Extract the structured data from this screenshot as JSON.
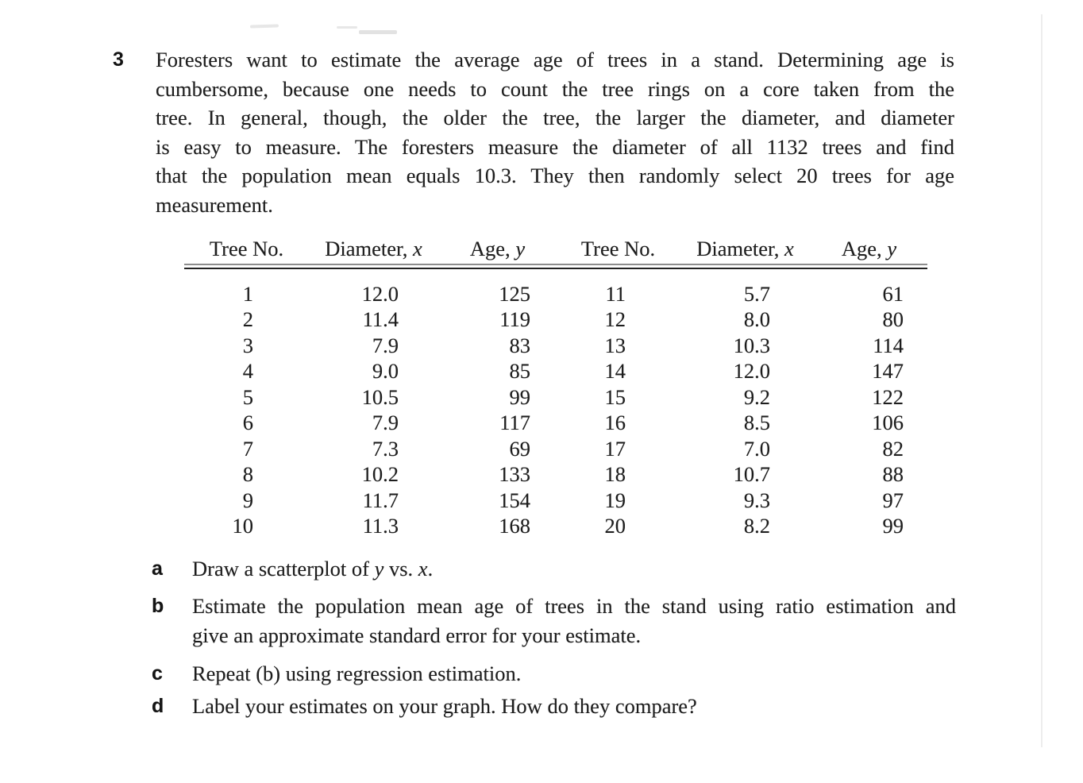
{
  "colors": {
    "paper": "#ffffff",
    "ink": "#1d1d1d"
  },
  "problem": {
    "number": "3",
    "lines": [
      "Foresters want to estimate the average age of trees in a stand. Determining age is",
      "cumbersome, because one needs to count the tree rings on a core taken from the",
      "tree. In general, though, the older the tree, the larger the diameter, and diameter",
      "is easy to measure. The foresters measure the diameter of all 1132 trees and find",
      "that the population mean equals 10.3. They then randomly select 20 trees for age",
      "measurement."
    ]
  },
  "table": {
    "headers": [
      {
        "prefix": "Tree No.",
        "var": ""
      },
      {
        "prefix": "Diameter, ",
        "var": "x"
      },
      {
        "prefix": "Age, ",
        "var": "y"
      },
      {
        "prefix": "Tree No.",
        "var": ""
      },
      {
        "prefix": "Diameter, ",
        "var": "x"
      },
      {
        "prefix": "Age, ",
        "var": "y"
      }
    ],
    "rows": [
      [
        "1",
        "12.0",
        "125",
        "11",
        "5.7",
        "61"
      ],
      [
        "2",
        "11.4",
        "119",
        "12",
        "8.0",
        "80"
      ],
      [
        "3",
        "7.9",
        "83",
        "13",
        "10.3",
        "114"
      ],
      [
        "4",
        "9.0",
        "85",
        "14",
        "12.0",
        "147"
      ],
      [
        "5",
        "10.5",
        "99",
        "15",
        "9.2",
        "122"
      ],
      [
        "6",
        "7.9",
        "117",
        "16",
        "8.5",
        "106"
      ],
      [
        "7",
        "7.3",
        "69",
        "17",
        "7.0",
        "82"
      ],
      [
        "8",
        "10.2",
        "133",
        "18",
        "10.7",
        "88"
      ],
      [
        "9",
        "11.7",
        "154",
        "19",
        "9.3",
        "97"
      ],
      [
        "10",
        "11.3",
        "168",
        "20",
        "8.2",
        "99"
      ]
    ]
  },
  "parts": [
    {
      "label": "a",
      "pre": "Draw a scatterplot of ",
      "y": "y",
      "mid": " vs. ",
      "x": "x",
      "post": "."
    },
    {
      "label": "b",
      "line1": "Estimate the population mean age of trees in the stand using ratio estimation and",
      "line2": "give an approximate standard error for your estimate."
    },
    {
      "label": "c",
      "text": "Repeat (b) using regression estimation."
    },
    {
      "label": "d",
      "text": "Label your estimates on your graph. How do they compare?"
    }
  ]
}
